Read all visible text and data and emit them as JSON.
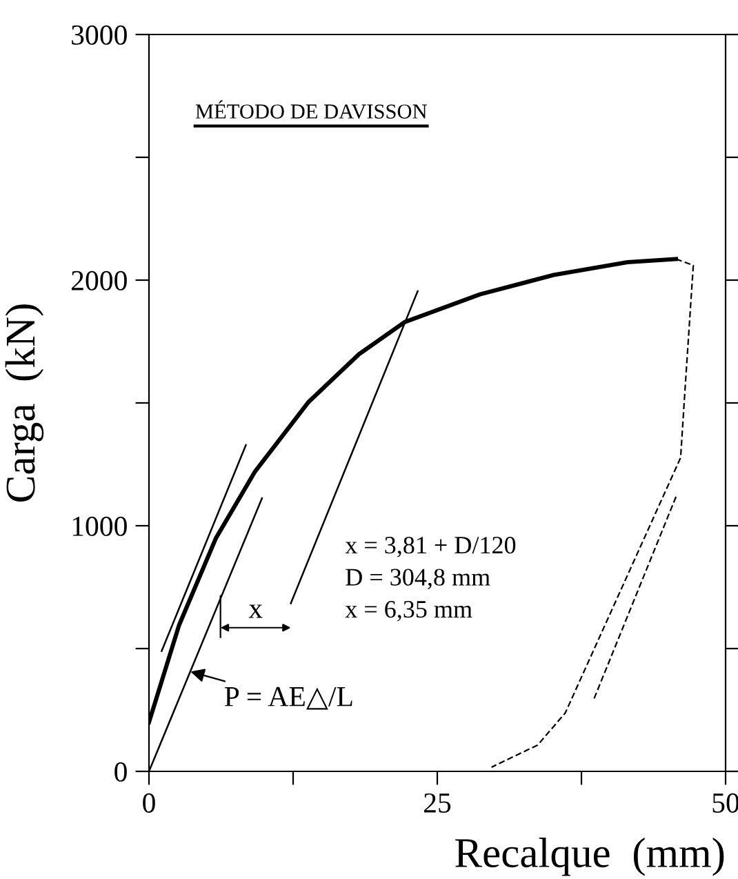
{
  "chart_data": {
    "type": "line",
    "xlabel": "Recalque  (mm)",
    "ylabel": "Carga  (kN)",
    "xlim": [
      0,
      50
    ],
    "ylim": [
      0,
      3000
    ],
    "xticks": [
      0,
      {
        "value": 12.5,
        "label": null
      },
      25,
      {
        "value": 37.5,
        "label": null
      },
      50
    ],
    "yticks": [
      0,
      {
        "value": 500,
        "label": null
      },
      1000,
      {
        "value": 1500,
        "label": null
      },
      2000,
      {
        "value": 2500,
        "label": null
      },
      3000
    ],
    "grid": false,
    "marker": "none",
    "series": [
      {
        "color": "#000000",
        "line_style": "solid",
        "x": [
          0,
          2.6,
          5.8,
          9.2,
          13.8,
          18.2,
          22.2,
          28.7,
          35.1,
          41.5,
          45.7
        ],
        "values": [
          200,
          594,
          949,
          1221,
          1502,
          1698,
          1830,
          1942,
          2021,
          2073,
          2086
        ]
      },
      {
        "color": "#000000",
        "line_style": "dashed",
        "x": [
          45.7,
          47.2,
          46.5,
          46.1,
          36.1,
          33.7,
          29.7
        ],
        "values": [
          2086,
          2060,
          1567,
          1277,
          238,
          107,
          17
        ]
      },
      {
        "color": "#000000",
        "line_style": "dashed",
        "x": [
          45.7,
          38.5
        ],
        "values": [
          1118,
          285
        ]
      },
      {
        "color": "#000000",
        "line_style": "solid",
        "x": [
          0,
          9.8
        ],
        "values": [
          0,
          1112
        ]
      },
      {
        "color": "#000000",
        "line_style": "solid",
        "x": [
          1.1,
          8.4
        ],
        "values": [
          490,
          1328
        ]
      },
      {
        "color": "#000000",
        "line_style": "solid",
        "x": [
          12.3,
          23.3
        ],
        "values": [
          684,
          1955
        ]
      }
    ],
    "annotations": [
      "MÉTODO DE DAVISSON",
      "x = 3,81 + D/120",
      "D = 304,8 mm",
      "x = 6,35 mm",
      {
        "text": "P = AE△/L",
        "x": 3.6,
        "y": 406
      },
      "x"
    ]
  }
}
